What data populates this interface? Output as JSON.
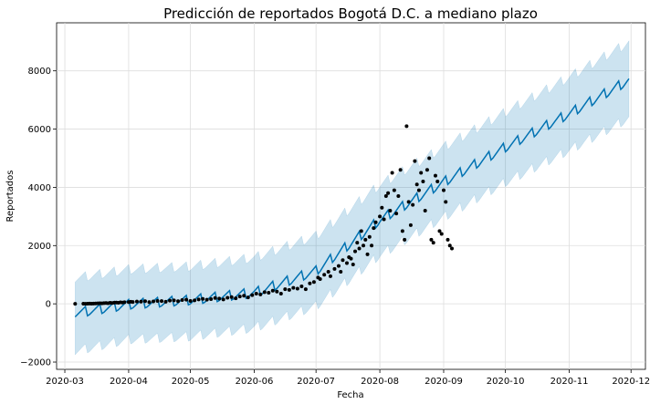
{
  "chart_data": {
    "type": "line",
    "title": "Predicción de reportados Bogotá D.C. a mediano plazo",
    "xlabel": "Fecha",
    "ylabel": "Reportados",
    "x_range": [
      "2020-02-26",
      "2020-12-08"
    ],
    "ylim": [
      -2250,
      9650
    ],
    "x_ticks": [
      "2020-03",
      "2020-04",
      "2020-05",
      "2020-06",
      "2020-07",
      "2020-08",
      "2020-09",
      "2020-10",
      "2020-11",
      "2020-12"
    ],
    "y_ticks": [
      -2000,
      0,
      2000,
      4000,
      6000,
      8000
    ],
    "grid": true,
    "colors": {
      "forecast": "#0072B2",
      "interval": "#0072B2",
      "observed": "#000000",
      "grid": "#dddddd"
    },
    "forecast_range": [
      "2020-03-06",
      "2020-11-30"
    ],
    "forecast_knots": [
      {
        "date": "2020-03-06",
        "yhat": -300,
        "lower": -1600,
        "upper": 900
      },
      {
        "date": "2020-04-01",
        "yhat": 0,
        "lower": -1200,
        "upper": 1200
      },
      {
        "date": "2020-05-01",
        "yhat": 150,
        "lower": -1100,
        "upper": 1300
      },
      {
        "date": "2020-06-01",
        "yhat": 400,
        "lower": -800,
        "upper": 1600
      },
      {
        "date": "2020-07-01",
        "yhat": 1150,
        "lower": -50,
        "upper": 2350
      },
      {
        "date": "2020-08-01",
        "yhat": 2900,
        "lower": 1700,
        "upper": 4100
      },
      {
        "date": "2020-09-01",
        "yhat": 4200,
        "lower": 3000,
        "upper": 5400
      },
      {
        "date": "2020-10-01",
        "yhat": 5400,
        "lower": 4200,
        "upper": 6600
      },
      {
        "date": "2020-11-01",
        "yhat": 6550,
        "lower": 5300,
        "upper": 7800
      },
      {
        "date": "2020-11-30",
        "yhat": 7700,
        "lower": 6400,
        "upper": 9000
      }
    ],
    "weekly_amplitude": 300,
    "observed": [
      [
        "2020-03-06",
        1
      ],
      [
        "2020-03-10",
        3
      ],
      [
        "2020-03-11",
        2
      ],
      [
        "2020-03-12",
        5
      ],
      [
        "2020-03-13",
        8
      ],
      [
        "2020-03-14",
        6
      ],
      [
        "2020-03-15",
        10
      ],
      [
        "2020-03-16",
        12
      ],
      [
        "2020-03-17",
        15
      ],
      [
        "2020-03-18",
        20
      ],
      [
        "2020-03-19",
        18
      ],
      [
        "2020-03-20",
        25
      ],
      [
        "2020-03-21",
        30
      ],
      [
        "2020-03-22",
        22
      ],
      [
        "2020-03-23",
        35
      ],
      [
        "2020-03-24",
        28
      ],
      [
        "2020-03-25",
        40
      ],
      [
        "2020-03-26",
        45
      ],
      [
        "2020-03-27",
        38
      ],
      [
        "2020-03-28",
        50
      ],
      [
        "2020-03-29",
        42
      ],
      [
        "2020-03-30",
        55
      ],
      [
        "2020-04-01",
        60
      ],
      [
        "2020-04-02",
        70
      ],
      [
        "2020-04-03",
        65
      ],
      [
        "2020-04-05",
        80
      ],
      [
        "2020-04-07",
        75
      ],
      [
        "2020-04-09",
        90
      ],
      [
        "2020-04-11",
        60
      ],
      [
        "2020-04-13",
        85
      ],
      [
        "2020-04-15",
        100
      ],
      [
        "2020-04-17",
        95
      ],
      [
        "2020-04-19",
        70
      ],
      [
        "2020-04-21",
        110
      ],
      [
        "2020-04-23",
        120
      ],
      [
        "2020-04-25",
        90
      ],
      [
        "2020-04-27",
        130
      ],
      [
        "2020-04-29",
        140
      ],
      [
        "2020-05-01",
        100
      ],
      [
        "2020-05-03",
        120
      ],
      [
        "2020-05-05",
        150
      ],
      [
        "2020-05-07",
        170
      ],
      [
        "2020-05-09",
        140
      ],
      [
        "2020-05-11",
        160
      ],
      [
        "2020-05-13",
        200
      ],
      [
        "2020-05-15",
        180
      ],
      [
        "2020-05-17",
        150
      ],
      [
        "2020-05-19",
        210
      ],
      [
        "2020-05-21",
        230
      ],
      [
        "2020-05-23",
        190
      ],
      [
        "2020-05-25",
        250
      ],
      [
        "2020-05-27",
        280
      ],
      [
        "2020-05-29",
        220
      ],
      [
        "2020-05-31",
        300
      ],
      [
        "2020-06-02",
        350
      ],
      [
        "2020-06-04",
        320
      ],
      [
        "2020-06-06",
        400
      ],
      [
        "2020-06-08",
        380
      ],
      [
        "2020-06-10",
        450
      ],
      [
        "2020-06-12",
        420
      ],
      [
        "2020-06-14",
        350
      ],
      [
        "2020-06-16",
        500
      ],
      [
        "2020-06-18",
        480
      ],
      [
        "2020-06-20",
        550
      ],
      [
        "2020-06-22",
        520
      ],
      [
        "2020-06-24",
        600
      ],
      [
        "2020-06-26",
        500
      ],
      [
        "2020-06-28",
        700
      ],
      [
        "2020-06-30",
        750
      ],
      [
        "2020-07-02",
        900
      ],
      [
        "2020-07-03",
        850
      ],
      [
        "2020-07-05",
        1000
      ],
      [
        "2020-07-07",
        1100
      ],
      [
        "2020-07-08",
        950
      ],
      [
        "2020-07-10",
        1200
      ],
      [
        "2020-07-12",
        1300
      ],
      [
        "2020-07-13",
        1100
      ],
      [
        "2020-07-14",
        1500
      ],
      [
        "2020-07-16",
        1400
      ],
      [
        "2020-07-17",
        1600
      ],
      [
        "2020-07-18",
        1550
      ],
      [
        "2020-07-19",
        1350
      ],
      [
        "2020-07-20",
        1800
      ],
      [
        "2020-07-21",
        2100
      ],
      [
        "2020-07-22",
        1900
      ],
      [
        "2020-07-23",
        2500
      ],
      [
        "2020-07-24",
        2000
      ],
      [
        "2020-07-25",
        2200
      ],
      [
        "2020-07-26",
        1700
      ],
      [
        "2020-07-27",
        2300
      ],
      [
        "2020-07-28",
        2000
      ],
      [
        "2020-07-29",
        2600
      ],
      [
        "2020-07-30",
        2800
      ],
      [
        "2020-08-01",
        3000
      ],
      [
        "2020-08-02",
        3300
      ],
      [
        "2020-08-03",
        2900
      ],
      [
        "2020-08-04",
        3700
      ],
      [
        "2020-08-05",
        3800
      ],
      [
        "2020-08-06",
        3200
      ],
      [
        "2020-08-07",
        4500
      ],
      [
        "2020-08-08",
        3900
      ],
      [
        "2020-08-09",
        3100
      ],
      [
        "2020-08-10",
        3700
      ],
      [
        "2020-08-11",
        4600
      ],
      [
        "2020-08-12",
        2500
      ],
      [
        "2020-08-13",
        2200
      ],
      [
        "2020-08-14",
        6100
      ],
      [
        "2020-08-15",
        3500
      ],
      [
        "2020-08-16",
        2700
      ],
      [
        "2020-08-17",
        3400
      ],
      [
        "2020-08-18",
        4900
      ],
      [
        "2020-08-19",
        4100
      ],
      [
        "2020-08-20",
        3900
      ],
      [
        "2020-08-21",
        4500
      ],
      [
        "2020-08-22",
        4200
      ],
      [
        "2020-08-23",
        3200
      ],
      [
        "2020-08-24",
        4600
      ],
      [
        "2020-08-25",
        5000
      ],
      [
        "2020-08-26",
        2200
      ],
      [
        "2020-08-27",
        2100
      ],
      [
        "2020-08-28",
        4400
      ],
      [
        "2020-08-29",
        4200
      ],
      [
        "2020-08-30",
        2500
      ],
      [
        "2020-08-31",
        2400
      ],
      [
        "2020-09-01",
        3900
      ],
      [
        "2020-09-02",
        3500
      ],
      [
        "2020-09-03",
        2200
      ],
      [
        "2020-09-04",
        2000
      ],
      [
        "2020-09-05",
        1900
      ]
    ]
  }
}
